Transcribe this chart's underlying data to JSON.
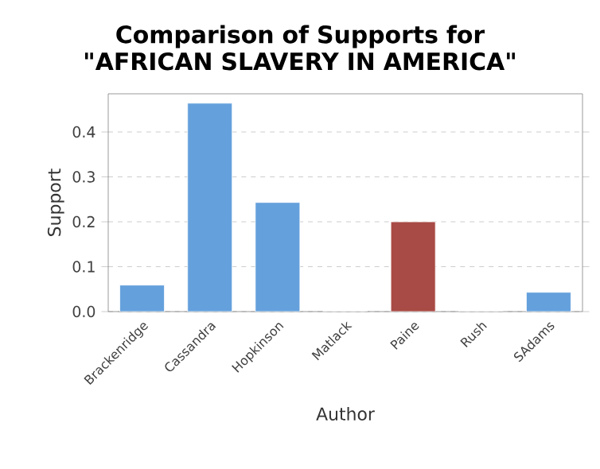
{
  "chart_data": {
    "type": "bar",
    "title": "Comparison of Supports for \"AFRICAN SLAVERY IN AMERICA\"",
    "xlabel": "Author",
    "ylabel": "Support",
    "categories": [
      "Brackenridge",
      "Cassandra",
      "Hopkinson",
      "Matlack",
      "Paine",
      "Rush",
      "SAdams"
    ],
    "values": [
      0.059,
      0.464,
      0.243,
      0,
      0.2,
      0,
      0.043
    ],
    "colors": [
      "#64a0dc",
      "#64a0dc",
      "#64a0dc",
      "#64a0dc",
      "#a84a45",
      "#64a0dc",
      "#64a0dc"
    ],
    "ylim": [
      0,
      0.485
    ],
    "yticks": [
      {
        "value": 0,
        "label": "0.0"
      },
      0.1,
      0.2,
      0.3,
      0.4
    ],
    "grid": "y"
  }
}
